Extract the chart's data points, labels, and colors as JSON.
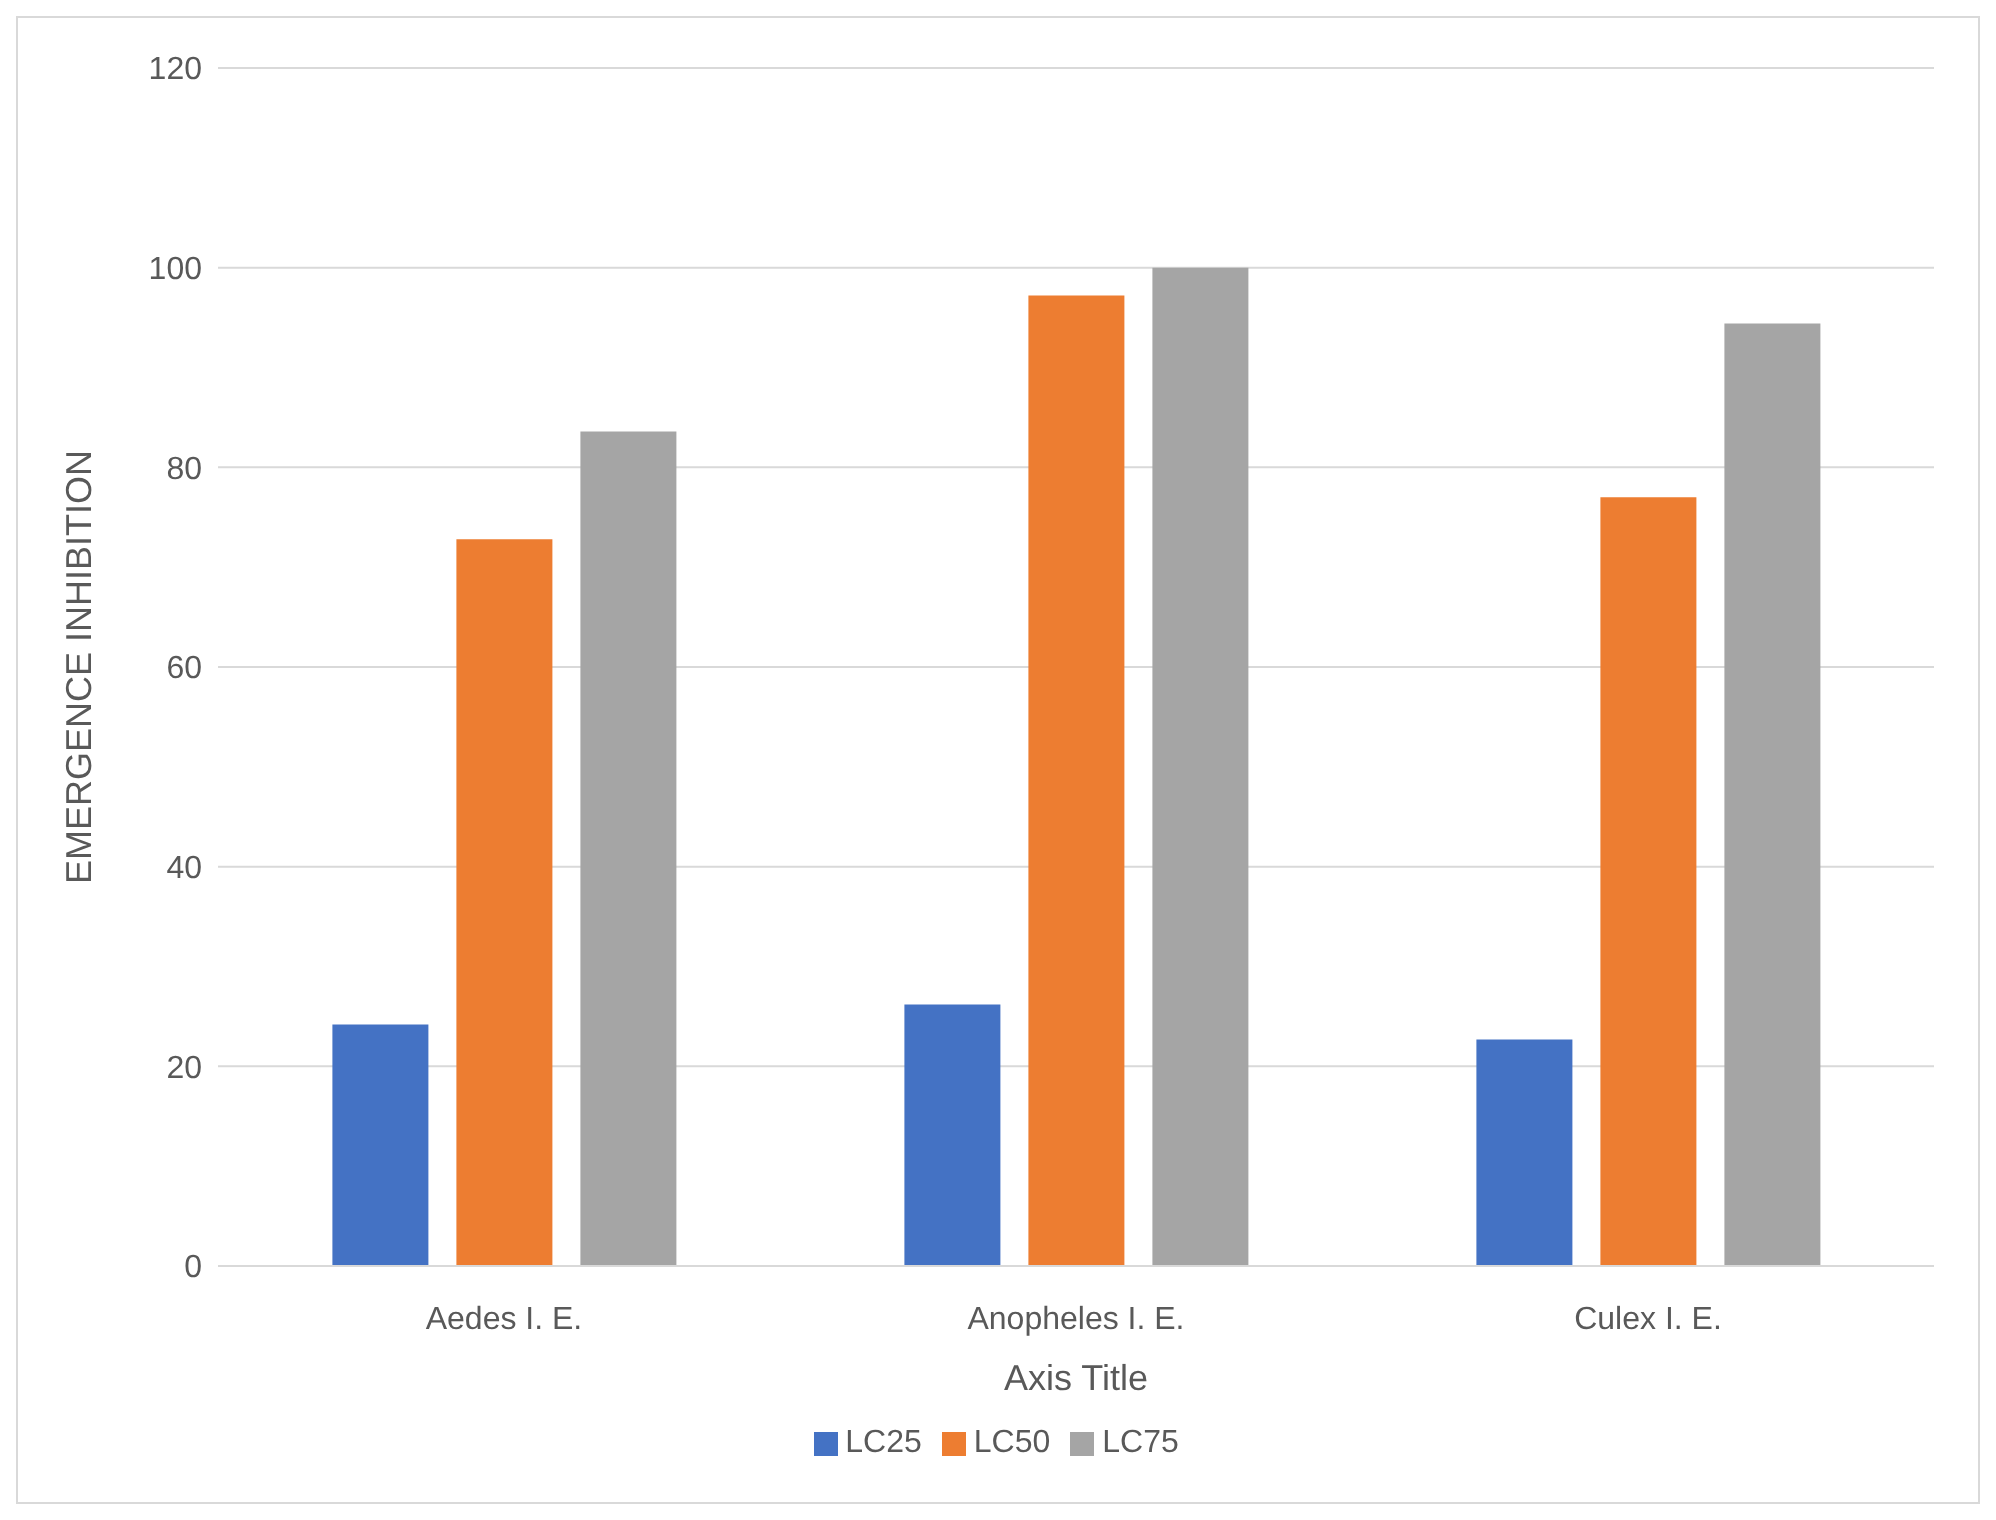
{
  "chart_data": {
    "type": "bar",
    "xlabel": "Axis Title",
    "ylabel": "EMERGENCE INHIBITION",
    "categories": [
      "Aedes I. E.",
      "Anopheles I. E.",
      "Culex I. E."
    ],
    "series": [
      {
        "name": "LC25",
        "color": "#4472c4",
        "values": [
          24.2,
          26.2,
          22.7
        ]
      },
      {
        "name": "LC50",
        "color": "#ed7d31",
        "values": [
          72.8,
          97.2,
          77.0
        ]
      },
      {
        "name": "LC75",
        "color": "#a5a5a5",
        "values": [
          83.6,
          100,
          94.4
        ]
      }
    ],
    "ylim": [
      0,
      120
    ],
    "yticks": [
      0,
      20,
      40,
      60,
      80,
      100,
      120
    ],
    "grid": "y",
    "legend": "bottom"
  }
}
